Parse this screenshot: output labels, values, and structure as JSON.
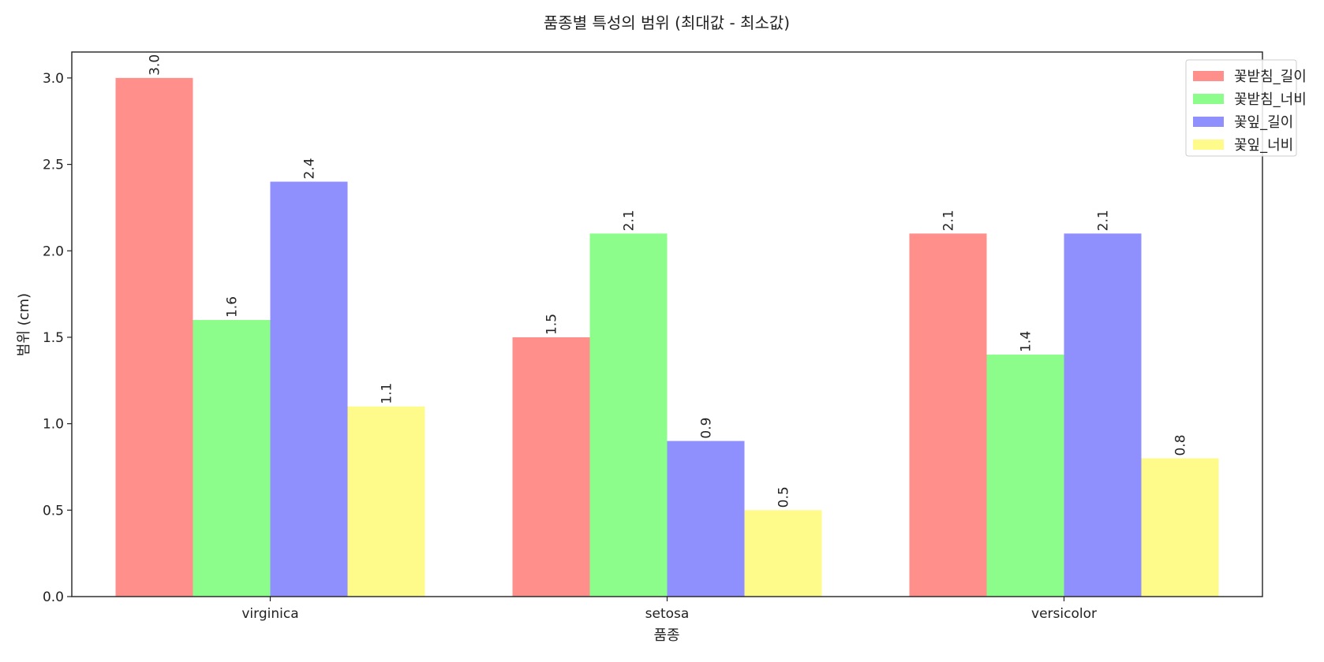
{
  "chart_data": {
    "type": "bar",
    "title": "품종별 특성의 범위 (최대값 - 최소값)",
    "xlabel": "품종",
    "ylabel": "범위 (cm)",
    "categories": [
      "virginica",
      "setosa",
      "versicolor"
    ],
    "ylim": [
      0,
      3.15
    ],
    "yticks": [
      "0.0",
      "0.5",
      "1.0",
      "1.5",
      "2.0",
      "2.5",
      "3.0"
    ],
    "grid": false,
    "legend_position": "top-right",
    "series": [
      {
        "name": "꽃받침_길이",
        "color": "#ff8f8b",
        "values": [
          3.0,
          1.5,
          2.1
        ],
        "labels": [
          "3.0",
          "1.5",
          "2.1"
        ]
      },
      {
        "name": "꽃받침_너비",
        "color": "#8cfd8b",
        "values": [
          1.6,
          2.1,
          1.4
        ],
        "labels": [
          "1.6",
          "2.1",
          "1.4"
        ]
      },
      {
        "name": "꽃잎_길이",
        "color": "#8f8ffe",
        "values": [
          2.4,
          0.9,
          2.1
        ],
        "labels": [
          "2.4",
          "0.9",
          "2.1"
        ]
      },
      {
        "name": "꽃잎_너비",
        "color": "#fffb8b",
        "values": [
          1.1,
          0.5,
          0.8
        ],
        "labels": [
          "1.1",
          "0.5",
          "0.8"
        ]
      }
    ]
  }
}
